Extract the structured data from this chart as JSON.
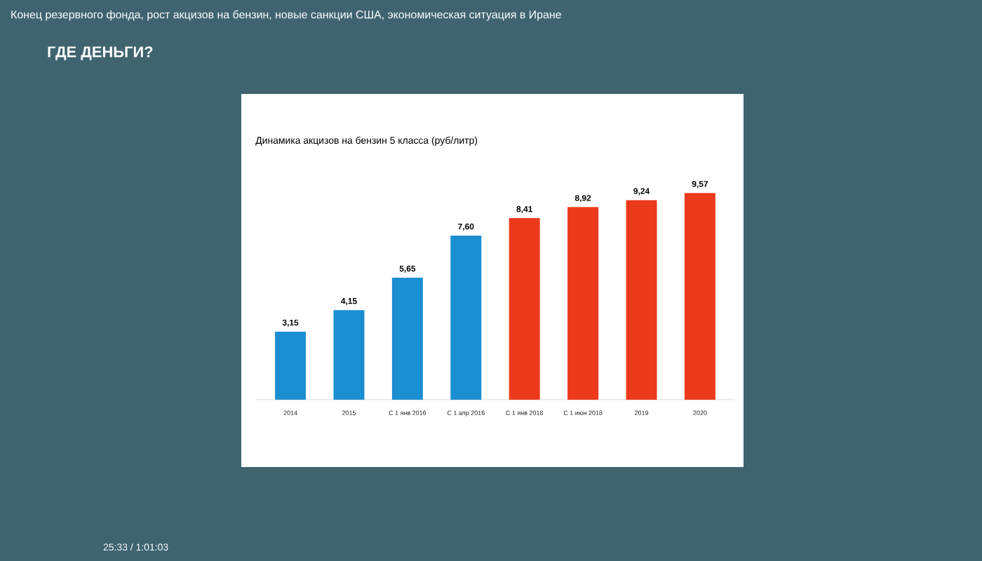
{
  "chart_data": {
    "type": "bar",
    "title": "Динамика акцизов на бензин 5 класса (руб/литр)",
    "categories": [
      "2014",
      "2015",
      "С 1 янв 2016",
      "С 1 апр 2016",
      "С 1 янв 2018",
      "С 1 июн 2018",
      "2019",
      "2020"
    ],
    "values": [
      3.15,
      4.15,
      5.65,
      7.6,
      8.41,
      8.92,
      9.24,
      9.57
    ],
    "value_labels": [
      "3,15",
      "4,15",
      "5,65",
      "7,60",
      "8,41",
      "8,92",
      "9,24",
      "9,57"
    ],
    "colors": [
      "#1b8fd2",
      "#1b8fd2",
      "#1b8fd2",
      "#1b8fd2",
      "#ec3a1c",
      "#ec3a1c",
      "#ec3a1c",
      "#ec3a1c"
    ],
    "annotations": [
      "Конец резервного фонда, рост акцизов на бензин, новые санкции США, экономическая ситуация в Иране",
      "ГДЕ ДЕНЬГИ?",
      "25:33 / 1:01:03"
    ]
  }
}
